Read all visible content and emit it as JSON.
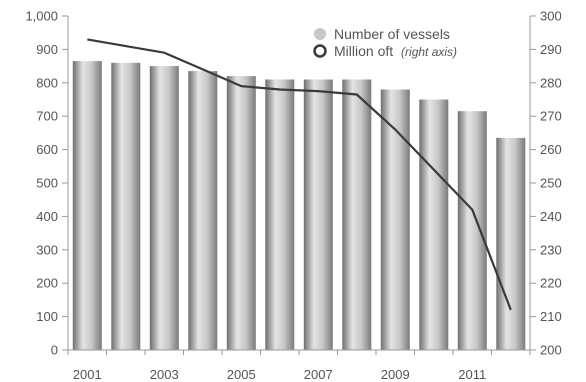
{
  "chart_data": {
    "type": "bar",
    "categories": [
      "2001",
      "2002",
      "2003",
      "2004",
      "2005",
      "2006",
      "2007",
      "2008",
      "2009",
      "2010",
      "2011",
      "2012"
    ],
    "x_tick_labels": [
      "2001",
      "2003",
      "2005",
      "2007",
      "2009",
      "2011"
    ],
    "series": [
      {
        "name": "Number of vessels",
        "type": "bar",
        "axis": "left",
        "values": [
          865,
          860,
          850,
          835,
          820,
          810,
          810,
          810,
          780,
          750,
          715,
          635
        ]
      },
      {
        "name": "Million oft",
        "name_suffix": "(right axis)",
        "type": "line",
        "axis": "right",
        "values": [
          293,
          291,
          289,
          284,
          279,
          278,
          277.5,
          276.5,
          266,
          254,
          242,
          212
        ]
      }
    ],
    "y_left": {
      "min": 0,
      "max": 1000,
      "ticks": [
        "0",
        "100",
        "200",
        "300",
        "400",
        "500",
        "600",
        "700",
        "800",
        "900",
        "1,000"
      ]
    },
    "y_right": {
      "min": 200,
      "max": 300,
      "ticks": [
        "200",
        "210",
        "220",
        "230",
        "240",
        "250",
        "260",
        "270",
        "280",
        "290",
        "300"
      ]
    },
    "legend_position": "top-right",
    "grid": false,
    "colors": {
      "bar_light": "#e4e4e4",
      "bar_mid": "#a8a8a8",
      "bar_dark": "#6e6e6e",
      "line": "#3a3a3a",
      "axis": "#9a9a9a",
      "text": "#555555"
    }
  }
}
